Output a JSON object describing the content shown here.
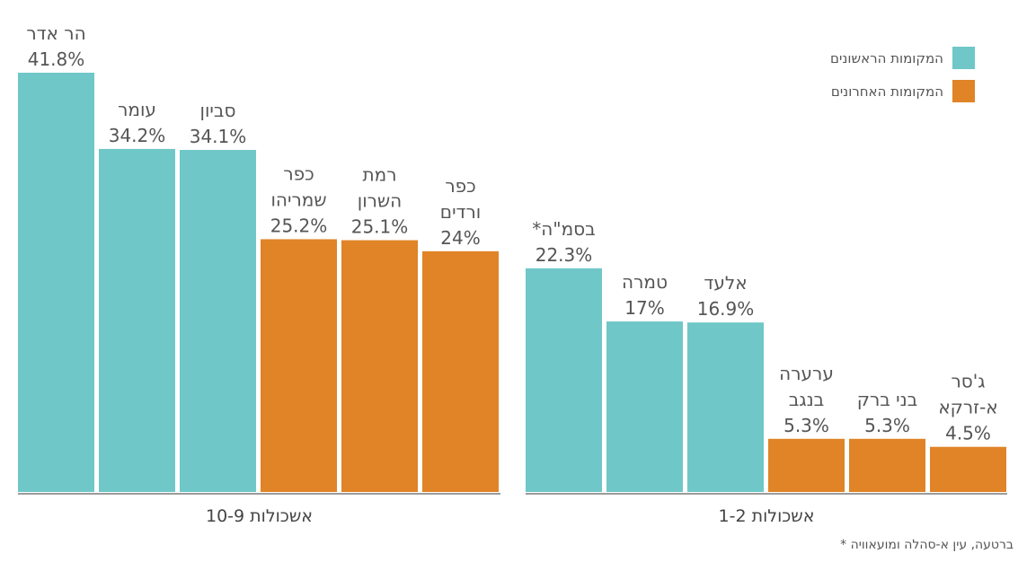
{
  "chart_data": {
    "type": "bar",
    "direction": "rtl",
    "ylim": [
      0,
      42
    ],
    "grid": false,
    "legend_position": "top-right",
    "colors": {
      "first": "#6fc7c8",
      "last": "#e08427",
      "axis": "#7a7a7a"
    },
    "legend": [
      {
        "key": "first",
        "label": "המקומות הראשונים"
      },
      {
        "key": "last",
        "label": "המקומות האחרונים"
      }
    ],
    "groups": [
      {
        "label": "אשכולות 10-9",
        "bars": [
          {
            "name_lines": [
              "הר אדר"
            ],
            "value": 41.8,
            "value_label": "41.8%",
            "series": "first"
          },
          {
            "name_lines": [
              "עומר"
            ],
            "value": 34.2,
            "value_label": "34.2%",
            "series": "first"
          },
          {
            "name_lines": [
              "סביון"
            ],
            "value": 34.1,
            "value_label": "34.1%",
            "series": "first"
          },
          {
            "name_lines": [
              "כפר",
              "שמריהו"
            ],
            "value": 25.2,
            "value_label": "25.2%",
            "series": "last"
          },
          {
            "name_lines": [
              "רמת",
              "השרון"
            ],
            "value": 25.1,
            "value_label": "25.1%",
            "series": "last"
          },
          {
            "name_lines": [
              "כפר",
              "ורדים"
            ],
            "value": 24,
            "value_label": "24%",
            "series": "last"
          }
        ]
      },
      {
        "label": "אשכולות 1-2",
        "bars": [
          {
            "name_lines": [
              "בסמ\"ה*"
            ],
            "value": 22.3,
            "value_label": "22.3%",
            "series": "first"
          },
          {
            "name_lines": [
              "טמרה"
            ],
            "value": 17,
            "value_label": "17%",
            "series": "first"
          },
          {
            "name_lines": [
              "אלעד"
            ],
            "value": 16.9,
            "value_label": "16.9%",
            "series": "first"
          },
          {
            "name_lines": [
              "ערערה",
              "בנגב"
            ],
            "value": 5.3,
            "value_label": "5.3%",
            "series": "last"
          },
          {
            "name_lines": [
              "בני ברק"
            ],
            "value": 5.3,
            "value_label": "5.3%",
            "series": "last"
          },
          {
            "name_lines": [
              "ג'סר",
              "א-זרקא"
            ],
            "value": 4.5,
            "value_label": "4.5%",
            "series": "last"
          }
        ]
      }
    ],
    "footnote": "* ברטעה, עין א-סהלה ומועאוויה"
  }
}
